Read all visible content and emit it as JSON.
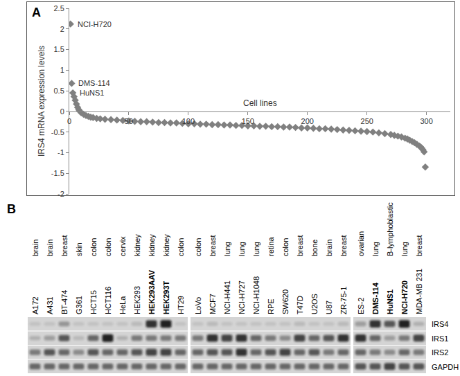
{
  "panel_labels": [
    "A",
    "B"
  ],
  "chart_data": {
    "type": "scatter",
    "marker": "diamond",
    "color": "#808080",
    "grid": false,
    "ylabel": "IRS4 mRNA expression levels",
    "xlabel": "Cell lines",
    "x": [
      1,
      2,
      3,
      4,
      5,
      6,
      7,
      8,
      9,
      10,
      12,
      14,
      16,
      18,
      20,
      23,
      26,
      30,
      35,
      40,
      45,
      50,
      55,
      60,
      65,
      70,
      75,
      80,
      85,
      90,
      95,
      100,
      105,
      110,
      115,
      120,
      125,
      130,
      135,
      140,
      145,
      150,
      155,
      160,
      165,
      170,
      175,
      180,
      185,
      190,
      195,
      200,
      205,
      210,
      215,
      220,
      225,
      230,
      235,
      240,
      245,
      250,
      255,
      260,
      265,
      270,
      273,
      276,
      279,
      282,
      284,
      286,
      288,
      290,
      292,
      294,
      295,
      296,
      297,
      298,
      299
    ],
    "values": [
      2.12,
      0.68,
      0.45,
      0.36,
      0.27,
      0.18,
      0.1,
      0.04,
      0,
      -0.03,
      -0.07,
      -0.1,
      -0.12,
      -0.14,
      -0.15,
      -0.17,
      -0.18,
      -0.19,
      -0.2,
      -0.21,
      -0.22,
      -0.23,
      -0.24,
      -0.25,
      -0.25,
      -0.26,
      -0.27,
      -0.27,
      -0.28,
      -0.28,
      -0.29,
      -0.3,
      -0.3,
      -0.31,
      -0.31,
      -0.32,
      -0.32,
      -0.33,
      -0.33,
      -0.34,
      -0.34,
      -0.35,
      -0.35,
      -0.36,
      -0.36,
      -0.37,
      -0.37,
      -0.38,
      -0.38,
      -0.39,
      -0.4,
      -0.4,
      -0.41,
      -0.42,
      -0.42,
      -0.43,
      -0.44,
      -0.45,
      -0.46,
      -0.47,
      -0.48,
      -0.49,
      -0.5,
      -0.52,
      -0.54,
      -0.56,
      -0.58,
      -0.6,
      -0.62,
      -0.65,
      -0.67,
      -0.7,
      -0.73,
      -0.76,
      -0.8,
      -0.84,
      -0.86,
      -0.89,
      -0.93,
      -0.98,
      -1.35
    ],
    "xlim": [
      0,
      320
    ],
    "xticks": [
      0,
      50,
      100,
      150,
      200,
      250,
      300
    ],
    "ylim": [
      -2,
      2.5
    ],
    "yticks": [
      -2,
      -1.5,
      -1,
      -0.5,
      0,
      0.5,
      1,
      1.5,
      2,
      2.5
    ],
    "annotations": [
      {
        "text": "NCI-H720",
        "x": 1,
        "y": 2.12
      },
      {
        "text": "DMS-114",
        "x": 2,
        "y": 0.68
      },
      {
        "text": "HuNS1",
        "x": 3,
        "y": 0.45
      }
    ]
  },
  "blot": {
    "rows": [
      "IRS4",
      "IRS1",
      "IRS2",
      "GAPDH"
    ],
    "panels": [
      {
        "lanes": [
          {
            "tissue": "brain",
            "cell_line": "A172",
            "bold": false,
            "bands": [
              0.1,
              0.2,
              0.5,
              0.6
            ]
          },
          {
            "tissue": "brain",
            "cell_line": "A431",
            "bold": false,
            "bands": [
              0.1,
              0.3,
              0.7,
              0.6
            ]
          },
          {
            "tissue": "breast",
            "cell_line": "BT-474",
            "bold": false,
            "bands": [
              0.35,
              0.7,
              0.6,
              0.6
            ]
          },
          {
            "tissue": "skin",
            "cell_line": "G361",
            "bold": false,
            "bands": [
              0.1,
              0.15,
              0.4,
              0.6
            ]
          },
          {
            "tissue": "colon",
            "cell_line": "HCT15",
            "bold": false,
            "bands": [
              0.1,
              0.6,
              0.7,
              0.6
            ]
          },
          {
            "tissue": "colon",
            "cell_line": "HCT116",
            "bold": false,
            "bands": [
              0.1,
              1,
              0.6,
              0.6
            ]
          },
          {
            "tissue": "cervix",
            "cell_line": "HeLa",
            "bold": false,
            "bands": [
              0.1,
              0.2,
              0.6,
              0.6
            ]
          },
          {
            "tissue": "kidney",
            "cell_line": "HEK293",
            "bold": false,
            "bands": [
              0.15,
              0.5,
              0.7,
              0.6
            ]
          },
          {
            "tissue": "kidney",
            "cell_line": "HEK293AAV",
            "bold": true,
            "bands": [
              0.9,
              0.5,
              0.8,
              0.6
            ]
          },
          {
            "tissue": "kidney",
            "cell_line": "HEK293T",
            "bold": true,
            "bands": [
              1,
              0.5,
              0.8,
              0.6
            ]
          },
          {
            "tissue": "colon",
            "cell_line": "HT29",
            "bold": false,
            "bands": [
              0.1,
              0.5,
              0.6,
              0.6
            ]
          }
        ]
      },
      {
        "lanes": [
          {
            "tissue": "colon",
            "cell_line": "LoVo",
            "bold": false,
            "bands": [
              0.1,
              0.5,
              0.6,
              0.6
            ]
          },
          {
            "tissue": "breast",
            "cell_line": "MCF7",
            "bold": false,
            "bands": [
              0.15,
              0.9,
              0.7,
              0.6
            ]
          },
          {
            "tissue": "lung",
            "cell_line": "NCI-H441",
            "bold": false,
            "bands": [
              0.1,
              0.8,
              0.7,
              0.6
            ]
          },
          {
            "tissue": "lung",
            "cell_line": "NCI-H727",
            "bold": false,
            "bands": [
              0.1,
              0.9,
              0.9,
              0.6
            ]
          },
          {
            "tissue": "lung",
            "cell_line": "NCI-H1048",
            "bold": false,
            "bands": [
              0.1,
              0.6,
              0.6,
              0.6
            ]
          },
          {
            "tissue": "retina",
            "cell_line": "RPE",
            "bold": false,
            "bands": [
              0.1,
              0.5,
              0.7,
              0.6
            ]
          },
          {
            "tissue": "colon",
            "cell_line": "SW620",
            "bold": false,
            "bands": [
              0.1,
              0.4,
              0.8,
              0.6
            ]
          },
          {
            "tissue": "breast",
            "cell_line": "T47D",
            "bold": false,
            "bands": [
              0.15,
              0.8,
              0.6,
              0.6
            ]
          },
          {
            "tissue": "bone",
            "cell_line": "U2OS",
            "bold": false,
            "bands": [
              0.1,
              0.6,
              0.7,
              0.6
            ]
          },
          {
            "tissue": "brain",
            "cell_line": "U87",
            "bold": false,
            "bands": [
              0.1,
              0.7,
              0.5,
              0.6
            ]
          },
          {
            "tissue": "breast",
            "cell_line": "ZR-75-1",
            "bold": false,
            "bands": [
              0.15,
              0.9,
              0.6,
              0.6
            ]
          }
        ]
      },
      {
        "lanes": [
          {
            "tissue": "ovarian",
            "cell_line": "ES-2",
            "bold": false,
            "bands": [
              0.3,
              0.9,
              0.6,
              0.7
            ]
          },
          {
            "tissue": "lung",
            "cell_line": "DMS-114",
            "bold": true,
            "bands": [
              0.9,
              0.6,
              0.5,
              0.7
            ]
          },
          {
            "tissue": "B-lymphoblastic",
            "cell_line": "HuNS1",
            "bold": true,
            "bands": [
              0.7,
              0.3,
              0.4,
              0.8
            ]
          },
          {
            "tissue": "lung",
            "cell_line": "NCI-H720",
            "bold": true,
            "bands": [
              1,
              0.5,
              0.6,
              0.7
            ]
          },
          {
            "tissue": "breast",
            "cell_line": "MDA-MB 231",
            "bold": false,
            "bands": [
              0.2,
              0.8,
              0.5,
              0.7
            ]
          }
        ]
      }
    ]
  }
}
